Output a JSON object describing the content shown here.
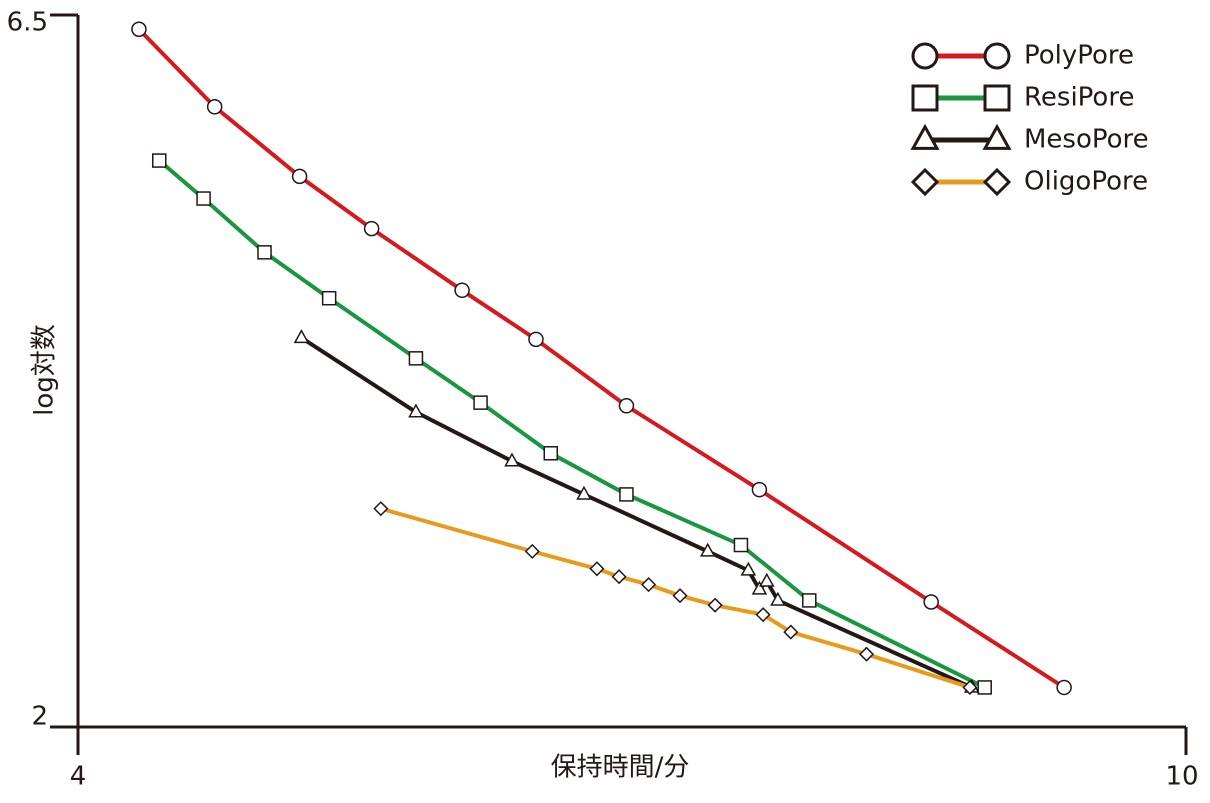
{
  "chart_data": {
    "type": "line",
    "x_label": "保持時間/分",
    "y_label": "log対数",
    "xlim": [
      4,
      10
    ],
    "xticks": [
      4,
      10
    ],
    "ylim": [
      2,
      6.5
    ],
    "yticks": [
      2,
      6.5
    ],
    "legend": "top-right",
    "series": [
      {
        "name": "PolyPore",
        "color": "#d7191f",
        "marker": "circle",
        "x": [
          4.33,
          4.74,
          5.2,
          5.59,
          6.08,
          6.48,
          6.97,
          7.69,
          8.62,
          9.34
        ],
        "values": [
          6.41,
          5.92,
          5.48,
          5.15,
          4.76,
          4.45,
          4.03,
          3.5,
          2.79,
          2.25
        ]
      },
      {
        "name": "ResiPore",
        "color": "#1a9641",
        "marker": "square",
        "x": [
          4.44,
          4.68,
          5.01,
          5.36,
          5.83,
          6.18,
          6.56,
          6.97,
          7.59,
          7.96,
          8.91
        ],
        "values": [
          5.58,
          5.34,
          5.0,
          4.71,
          4.33,
          4.05,
          3.73,
          3.47,
          3.15,
          2.8,
          2.25
        ]
      },
      {
        "name": "MesoPore",
        "color": "#231815",
        "marker": "triangle",
        "x": [
          5.21,
          5.83,
          6.35,
          6.74,
          7.41,
          7.63,
          7.69,
          7.73,
          7.79,
          8.84
        ],
        "values": [
          4.46,
          3.99,
          3.68,
          3.47,
          3.11,
          2.99,
          2.87,
          2.92,
          2.8,
          2.25
        ]
      },
      {
        "name": "OligoPore",
        "color": "#e89a1b",
        "marker": "diamond",
        "x": [
          5.64,
          6.46,
          6.81,
          6.93,
          7.09,
          7.26,
          7.45,
          7.71,
          7.86,
          8.27,
          8.83
        ],
        "values": [
          3.38,
          3.11,
          3.0,
          2.95,
          2.9,
          2.83,
          2.77,
          2.71,
          2.6,
          2.46,
          2.25
        ]
      }
    ]
  }
}
